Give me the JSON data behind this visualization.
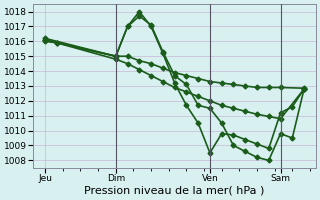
{
  "title": "",
  "xlabel": "Pression niveau de la mer( hPa )",
  "ylim": [
    1007.5,
    1018.5
  ],
  "yticks": [
    1008,
    1009,
    1010,
    1011,
    1012,
    1013,
    1014,
    1015,
    1016,
    1017,
    1018
  ],
  "bg_color": "#d8f0f0",
  "grid_color": "#c8b8d8",
  "line_color": "#1a5c1a",
  "line_color2": "#2a7a2a",
  "xtick_labels": [
    "Jeu",
    "Dim",
    "Ven",
    "Sam"
  ],
  "xtick_pos": [
    0,
    3,
    7,
    10
  ],
  "line1_x": [
    0,
    0.5,
    3,
    3.5,
    4,
    4.5,
    5,
    5.5,
    6,
    6.5,
    7,
    7.5,
    8,
    8.5,
    9,
    9.5,
    10,
    11
  ],
  "line1_y": [
    1016.0,
    1015.9,
    1015.0,
    1015.0,
    1014.7,
    1014.5,
    1014.2,
    1013.9,
    1013.7,
    1013.5,
    1013.3,
    1013.2,
    1013.1,
    1013.0,
    1012.9,
    1012.9,
    1012.9,
    1012.85
  ],
  "line2_x": [
    0,
    0.5,
    3,
    3.5,
    4,
    4.5,
    5,
    5.5,
    6,
    6.5,
    7,
    7.5,
    8,
    8.5,
    9,
    9.5,
    10,
    11
  ],
  "line2_y": [
    1016.1,
    1015.9,
    1014.8,
    1014.5,
    1014.1,
    1013.7,
    1013.3,
    1012.9,
    1012.6,
    1012.3,
    1012.0,
    1011.7,
    1011.5,
    1011.3,
    1011.1,
    1010.95,
    1010.8,
    1012.8
  ],
  "line3_x": [
    0,
    3,
    3.5,
    4,
    4.5,
    5,
    5.5,
    6,
    6.5,
    7,
    7.5,
    8,
    8.5,
    9,
    9.5,
    10,
    10.5,
    11
  ],
  "line3_y": [
    1016.2,
    1015.0,
    1017.0,
    1017.7,
    1017.1,
    1015.3,
    1013.7,
    1013.1,
    1011.7,
    1011.5,
    1010.5,
    1009.0,
    1008.6,
    1008.2,
    1008.0,
    1009.8,
    1009.5,
    1012.8
  ],
  "line4_x": [
    0,
    3,
    3.5,
    4,
    4.5,
    5,
    5.5,
    6,
    6.5,
    7,
    7.5,
    8,
    8.5,
    9,
    9.5,
    10,
    10.5,
    11
  ],
  "line4_y": [
    1016.1,
    1015.0,
    1017.0,
    1018.0,
    1017.0,
    1015.2,
    1013.2,
    1011.7,
    1010.5,
    1008.5,
    1009.8,
    1009.7,
    1009.4,
    1009.1,
    1008.8,
    1011.2,
    1011.6,
    1012.8
  ],
  "vline_x": [
    3,
    7,
    10
  ],
  "marker": "D",
  "markersize": 2.5,
  "linewidth": 1.2,
  "tick_fontsize": 6.5,
  "xlabel_fontsize": 8
}
